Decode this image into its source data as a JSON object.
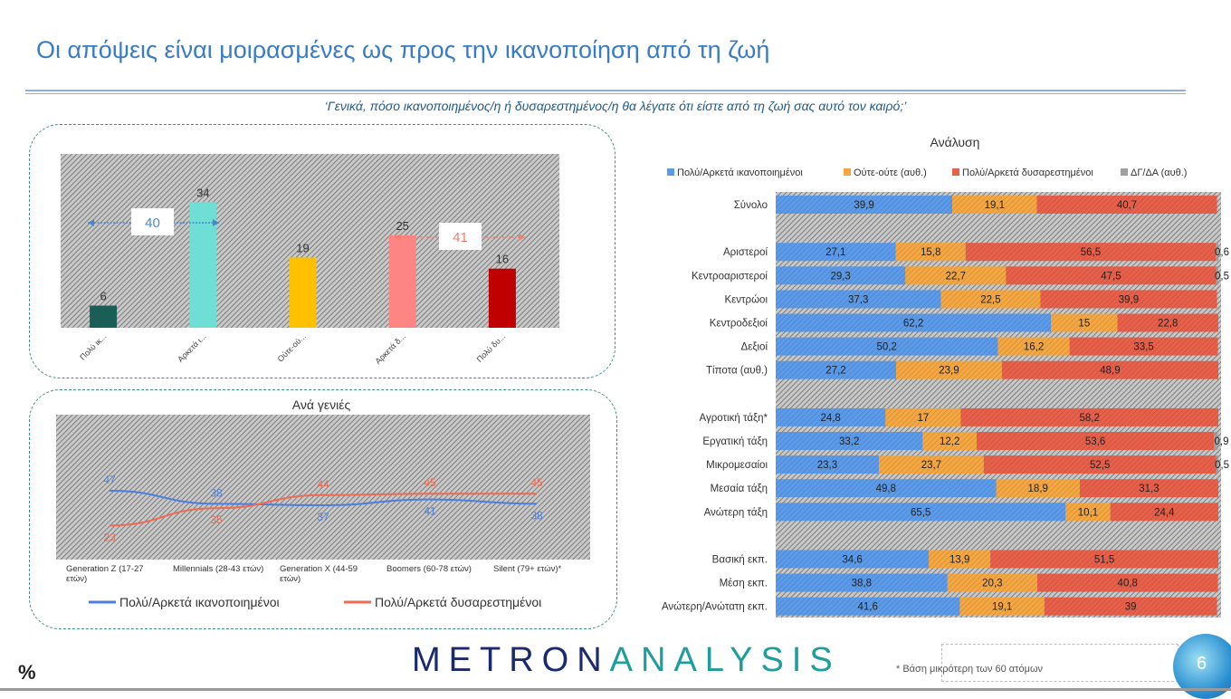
{
  "header": {
    "title": "Οι απόψεις είναι μοιρασμένες ως προς την ικανοποίηση από τη ζωή",
    "question": "‘Γενικά, πόσο ικανοποιημένος/η ή δυσαρεστημένος/η θα λέγατε ότι είστε από τη ζωή σας αυτό τον καιρό;’"
  },
  "chart_data": [
    {
      "type": "bar",
      "categories": [
        "Πολύ ικ...",
        "Αρκετά ι...",
        "Ούτε-ού...",
        "Αρκετά δ...",
        "Πολύ δυ..."
      ],
      "values": [
        6,
        34,
        19,
        25,
        16
      ],
      "colors": [
        "#1a5e57",
        "#6fded4",
        "#ffc000",
        "#ff8585",
        "#c00000"
      ],
      "annotations": [
        {
          "label": "40",
          "color": "#4a86d0"
        },
        {
          "label": "41",
          "color": "#f08070"
        }
      ],
      "ylim": [
        0,
        80
      ]
    },
    {
      "type": "line",
      "title": "Ανά γενιές",
      "categories": [
        "Generation Z (17-27 ετών)",
        "Millennials (28-43 ετών)",
        "Generation X (44-59 ετών)",
        "Boomers (60-78 ετών)",
        "Silent (79+ ετών)*"
      ],
      "series": [
        {
          "name": "Πολύ/Αρκετά ικανοποιημένοι",
          "color": "#4a7fe0",
          "values": [
            47,
            38,
            37,
            41,
            38
          ]
        },
        {
          "name": "Πολύ/Αρκετά δυσαρεστημένοι",
          "color": "#ee6a50",
          "values": [
            23,
            35,
            44,
            45,
            45
          ]
        }
      ]
    },
    {
      "type": "bar",
      "orientation": "horizontal-stacked",
      "title": "Ανάλυση",
      "legend_position": "top",
      "series": [
        {
          "name": "Πολύ/Αρκετά ικανοποιημένοι",
          "color": "#5b9bea"
        },
        {
          "name": "Ούτε-ούτε (αυθ.)",
          "color": "#f5a742"
        },
        {
          "name": "Πολύ/Αρκετά δυσαρεστημένοι",
          "color": "#e8604a"
        },
        {
          "name": "ΔΓ/ΔΑ (αυθ.)",
          "color": "#a0a0a0"
        }
      ],
      "rows": [
        {
          "label": "Σύνολο",
          "values": [
            39.9,
            19.1,
            40.7,
            0
          ],
          "labels": [
            "39,9",
            "19,1",
            "40,7",
            ""
          ]
        },
        null,
        {
          "label": "Αριστεροί",
          "values": [
            27.1,
            15.8,
            56.5,
            0.6
          ],
          "labels": [
            "27,1",
            "15,8",
            "56,5",
            "0,6"
          ]
        },
        {
          "label": "Κεντροαριστεροί",
          "values": [
            29.3,
            22.7,
            47.5,
            0.5
          ],
          "labels": [
            "29,3",
            "22,7",
            "47,5",
            "0,5"
          ]
        },
        {
          "label": "Κεντρώοι",
          "values": [
            37.3,
            22.5,
            39.9,
            0
          ],
          "labels": [
            "37,3",
            "22,5",
            "39,9",
            ""
          ]
        },
        {
          "label": "Κεντροδεξιοί",
          "values": [
            62.2,
            15,
            22.8,
            0
          ],
          "labels": [
            "62,2",
            "15",
            "22,8",
            ""
          ]
        },
        {
          "label": "Δεξιοί",
          "values": [
            50.2,
            16.2,
            33.5,
            0
          ],
          "labels": [
            "50,2",
            "16,2",
            "33,5",
            ""
          ]
        },
        {
          "label": "Τίποτα (αυθ.)",
          "values": [
            27.2,
            23.9,
            48.9,
            0
          ],
          "labels": [
            "27,2",
            "23,9",
            "48,9",
            ""
          ]
        },
        null,
        {
          "label": "Αγροτική τάξη*",
          "values": [
            24.8,
            17,
            58.2,
            0
          ],
          "labels": [
            "24,8",
            "17",
            "58,2",
            ""
          ]
        },
        {
          "label": "Εργατική τάξη",
          "values": [
            33.2,
            12.2,
            53.6,
            0.9
          ],
          "labels": [
            "33,2",
            "12,2",
            "53,6",
            "0,9"
          ]
        },
        {
          "label": "Μικρομεσαίοι",
          "values": [
            23.3,
            23.7,
            52.5,
            0.5
          ],
          "labels": [
            "23,3",
            "23,7",
            "52,5",
            "0,5"
          ]
        },
        {
          "label": "Μεσαία τάξη",
          "values": [
            49.8,
            18.9,
            31.3,
            0
          ],
          "labels": [
            "49,8",
            "18,9",
            "31,3",
            ""
          ]
        },
        {
          "label": "Ανώτερη τάξη",
          "values": [
            65.5,
            10.1,
            24.4,
            0
          ],
          "labels": [
            "65,5",
            "10,1",
            "24,4",
            ""
          ]
        },
        null,
        {
          "label": "Βασική εκπ.",
          "values": [
            34.6,
            13.9,
            51.5,
            0
          ],
          "labels": [
            "34,6",
            "13,9",
            "51,5",
            ""
          ]
        },
        {
          "label": "Μέση εκπ.",
          "values": [
            38.8,
            20.3,
            40.8,
            0
          ],
          "labels": [
            "38,8",
            "20,3",
            "40,8",
            ""
          ]
        },
        {
          "label": "Ανώτερη/Ανώτατη εκπ.",
          "values": [
            41.6,
            19.1,
            39,
            0
          ],
          "labels": [
            "41,6",
            "19,1",
            "39",
            ""
          ]
        }
      ],
      "xlim": [
        0,
        100
      ]
    }
  ],
  "footer": {
    "unit": "%",
    "logo_part1": "METRON",
    "logo_part2": "ANALYSIS",
    "footnote": "* Βάση μικρότερη των 60 ατόμων",
    "page_number": "6"
  }
}
